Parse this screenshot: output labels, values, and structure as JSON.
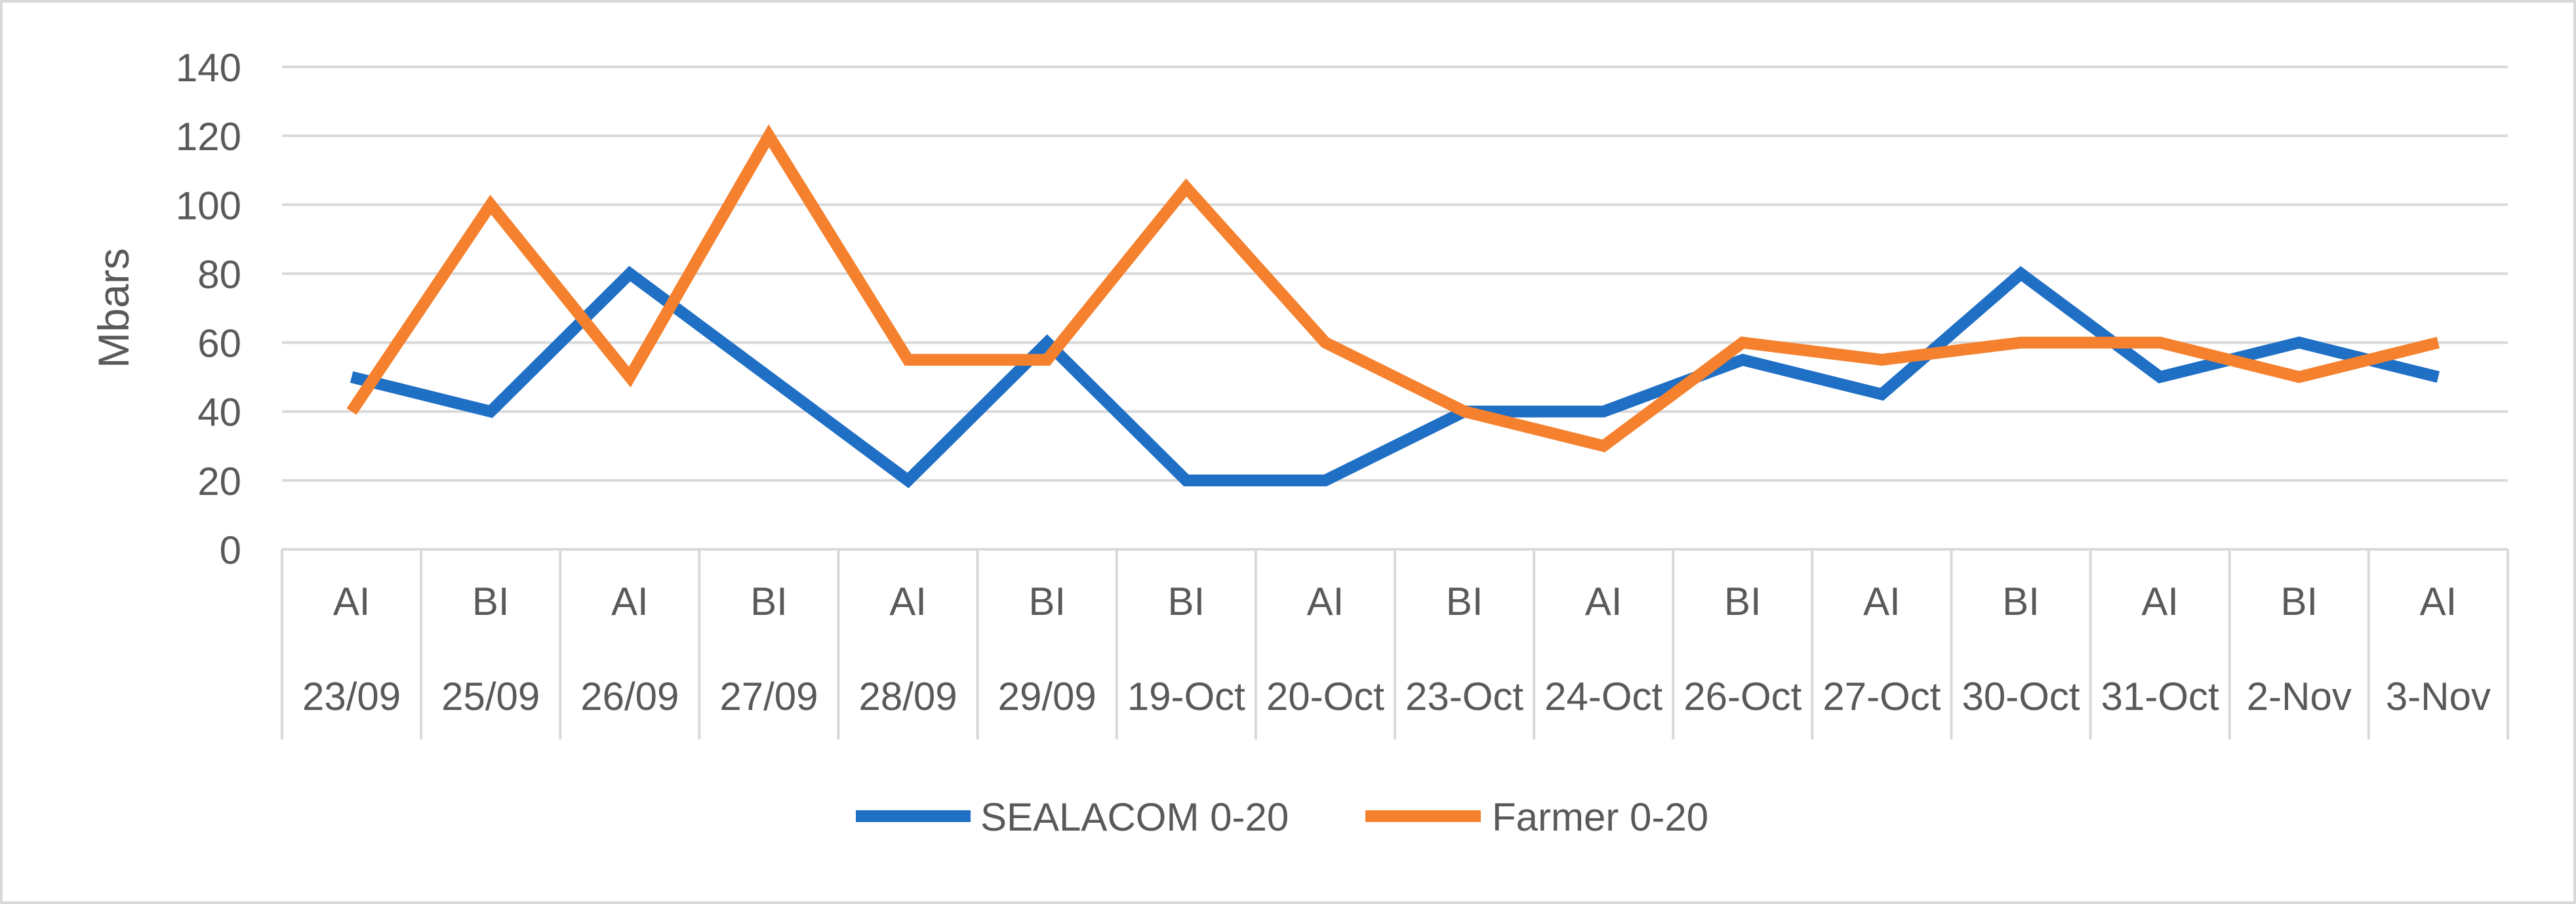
{
  "chart_data": {
    "type": "line",
    "title": "",
    "xlabel": "",
    "ylabel": "Mbars",
    "ylim": [
      0,
      140
    ],
    "yticks": [
      0,
      20,
      40,
      60,
      80,
      100,
      120,
      140
    ],
    "grid": true,
    "legend_position": "bottom",
    "categories": [
      {
        "group": "AI",
        "date": "23/09"
      },
      {
        "group": "BI",
        "date": "25/09"
      },
      {
        "group": "AI",
        "date": "26/09"
      },
      {
        "group": "BI",
        "date": "27/09"
      },
      {
        "group": "AI",
        "date": "28/09"
      },
      {
        "group": "BI",
        "date": "29/09"
      },
      {
        "group": "BI",
        "date": "19-Oct"
      },
      {
        "group": "AI",
        "date": "20-Oct"
      },
      {
        "group": "BI",
        "date": "23-Oct"
      },
      {
        "group": "AI",
        "date": "24-Oct"
      },
      {
        "group": "BI",
        "date": "26-Oct"
      },
      {
        "group": "AI",
        "date": "27-Oct"
      },
      {
        "group": "BI",
        "date": "30-Oct"
      },
      {
        "group": "AI",
        "date": "31-Oct"
      },
      {
        "group": "BI",
        "date": "2-Nov"
      },
      {
        "group": "AI",
        "date": "3-Nov"
      }
    ],
    "series": [
      {
        "name": "SEALACOM 0-20",
        "color": "#1F6FC5",
        "values": [
          50,
          40,
          80,
          50,
          20,
          60,
          20,
          20,
          40,
          40,
          55,
          45,
          80,
          50,
          60,
          50
        ]
      },
      {
        "name": "Farmer 0-20",
        "color": "#F5812E",
        "values": [
          40,
          100,
          50,
          120,
          55,
          55,
          105,
          60,
          40,
          30,
          60,
          55,
          60,
          60,
          50,
          60
        ]
      }
    ]
  }
}
